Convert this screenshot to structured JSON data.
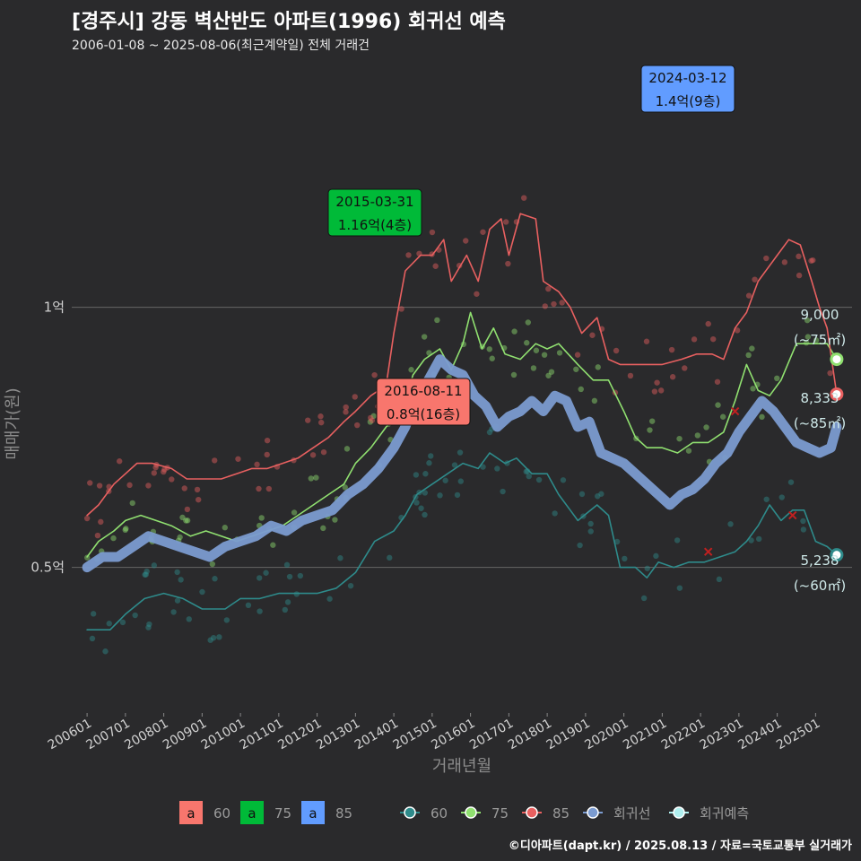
{
  "header": {
    "title": "[경주시] 강동 벽산반도 아파트(1996) 회귀선 예측",
    "subtitle": "2006-01-08 ~ 2025-08-06(최근계약일) 전체 거래건"
  },
  "footer": {
    "credit": "©디아파트(dapt.kr) / 2025.08.13 / 자료=국토교통부 실거래가"
  },
  "colors": {
    "background": "#2a2a2c",
    "s60": "#2e8b8b",
    "s75": "#90e070",
    "s85": "#e86060",
    "regression": "#7b9bd0",
    "forecast": "#b0f0f0",
    "box60": "#f8766d",
    "box75": "#00ba38",
    "box85": "#619cff"
  },
  "chart_data": {
    "type": "line",
    "xlabel": "거래년월",
    "ylabel": "매매가(원)",
    "x_ticks": [
      "200601",
      "200701",
      "200801",
      "200901",
      "201001",
      "201101",
      "201201",
      "201301",
      "201401",
      "201501",
      "201601",
      "201701",
      "201801",
      "201901",
      "202001",
      "202101",
      "202201",
      "202301",
      "202401",
      "202501"
    ],
    "y_ticks": [
      {
        "value": 0.5,
        "label": "0.5억"
      },
      {
        "value": 1.0,
        "label": "1억"
      }
    ],
    "ylim": [
      0.22,
      1.47
    ],
    "xlim": [
      2005.6,
      2025.95
    ],
    "series": [
      {
        "name": "60",
        "color": "#2e8b8b",
        "values": [
          [
            2006.0,
            0.38
          ],
          [
            2006.6,
            0.38
          ],
          [
            2007.0,
            0.41
          ],
          [
            2007.5,
            0.44
          ],
          [
            2008.0,
            0.45
          ],
          [
            2008.5,
            0.44
          ],
          [
            2009.0,
            0.42
          ],
          [
            2009.6,
            0.42
          ],
          [
            2010.0,
            0.44
          ],
          [
            2010.5,
            0.44
          ],
          [
            2011.0,
            0.45
          ],
          [
            2011.5,
            0.45
          ],
          [
            2012.0,
            0.45
          ],
          [
            2012.5,
            0.46
          ],
          [
            2013.0,
            0.49
          ],
          [
            2013.5,
            0.55
          ],
          [
            2014.0,
            0.57
          ],
          [
            2014.3,
            0.6
          ],
          [
            2014.6,
            0.64
          ],
          [
            2015.0,
            0.66
          ],
          [
            2015.4,
            0.68
          ],
          [
            2015.8,
            0.7
          ],
          [
            2016.2,
            0.69
          ],
          [
            2016.5,
            0.72
          ],
          [
            2016.9,
            0.7
          ],
          [
            2017.2,
            0.71
          ],
          [
            2017.6,
            0.68
          ],
          [
            2018.0,
            0.68
          ],
          [
            2018.3,
            0.64
          ],
          [
            2018.6,
            0.61
          ],
          [
            2018.8,
            0.59
          ],
          [
            2019.3,
            0.62
          ],
          [
            2019.6,
            0.6
          ],
          [
            2019.9,
            0.5
          ],
          [
            2020.3,
            0.5
          ],
          [
            2020.6,
            0.48
          ],
          [
            2020.9,
            0.51
          ],
          [
            2021.3,
            0.5
          ],
          [
            2021.7,
            0.51
          ],
          [
            2022.1,
            0.51
          ],
          [
            2022.5,
            0.52
          ],
          [
            2022.9,
            0.53
          ],
          [
            2023.2,
            0.55
          ],
          [
            2023.5,
            0.58
          ],
          [
            2023.8,
            0.62
          ],
          [
            2024.1,
            0.59
          ],
          [
            2024.4,
            0.61
          ],
          [
            2024.7,
            0.61
          ],
          [
            2025.0,
            0.55
          ],
          [
            2025.3,
            0.54
          ],
          [
            2025.55,
            0.524
          ]
        ]
      },
      {
        "name": "75",
        "color": "#90e070",
        "values": [
          [
            2006.0,
            0.52
          ],
          [
            2006.3,
            0.55
          ],
          [
            2006.7,
            0.57
          ],
          [
            2007.0,
            0.59
          ],
          [
            2007.4,
            0.6
          ],
          [
            2007.8,
            0.59
          ],
          [
            2008.2,
            0.58
          ],
          [
            2008.7,
            0.56
          ],
          [
            2009.1,
            0.57
          ],
          [
            2009.5,
            0.56
          ],
          [
            2009.9,
            0.55
          ],
          [
            2010.3,
            0.56
          ],
          [
            2010.7,
            0.57
          ],
          [
            2011.1,
            0.58
          ],
          [
            2011.5,
            0.6
          ],
          [
            2011.9,
            0.62
          ],
          [
            2012.3,
            0.64
          ],
          [
            2012.7,
            0.66
          ],
          [
            2013.0,
            0.7
          ],
          [
            2013.4,
            0.73
          ],
          [
            2013.8,
            0.77
          ],
          [
            2014.2,
            0.8
          ],
          [
            2014.5,
            0.87
          ],
          [
            2014.8,
            0.9
          ],
          [
            2015.2,
            0.92
          ],
          [
            2015.5,
            0.88
          ],
          [
            2015.8,
            0.93
          ],
          [
            2016.0,
            0.99
          ],
          [
            2016.3,
            0.92
          ],
          [
            2016.6,
            0.96
          ],
          [
            2016.9,
            0.91
          ],
          [
            2017.3,
            0.9
          ],
          [
            2017.7,
            0.93
          ],
          [
            2018.0,
            0.92
          ],
          [
            2018.3,
            0.93
          ],
          [
            2018.8,
            0.89
          ],
          [
            2019.2,
            0.86
          ],
          [
            2019.6,
            0.86
          ],
          [
            2020.0,
            0.8
          ],
          [
            2020.3,
            0.75
          ],
          [
            2020.6,
            0.73
          ],
          [
            2021.0,
            0.73
          ],
          [
            2021.4,
            0.72
          ],
          [
            2021.8,
            0.74
          ],
          [
            2022.2,
            0.74
          ],
          [
            2022.6,
            0.76
          ],
          [
            2022.9,
            0.82
          ],
          [
            2023.2,
            0.89
          ],
          [
            2023.5,
            0.84
          ],
          [
            2023.8,
            0.83
          ],
          [
            2024.1,
            0.86
          ],
          [
            2024.5,
            0.93
          ],
          [
            2024.9,
            0.93
          ],
          [
            2025.3,
            0.93
          ],
          [
            2025.55,
            0.9
          ]
        ]
      },
      {
        "name": "85",
        "color": "#e86060",
        "values": [
          [
            2006.0,
            0.6
          ],
          [
            2006.3,
            0.62
          ],
          [
            2006.7,
            0.66
          ],
          [
            2007.0,
            0.68
          ],
          [
            2007.3,
            0.7
          ],
          [
            2007.7,
            0.7
          ],
          [
            2008.2,
            0.69
          ],
          [
            2008.6,
            0.67
          ],
          [
            2009.0,
            0.67
          ],
          [
            2009.5,
            0.67
          ],
          [
            2009.9,
            0.68
          ],
          [
            2010.3,
            0.69
          ],
          [
            2010.7,
            0.69
          ],
          [
            2011.1,
            0.7
          ],
          [
            2011.5,
            0.71
          ],
          [
            2011.9,
            0.73
          ],
          [
            2012.3,
            0.75
          ],
          [
            2012.7,
            0.78
          ],
          [
            2013.0,
            0.8
          ],
          [
            2013.4,
            0.83
          ],
          [
            2013.8,
            0.85
          ],
          [
            2014.0,
            0.95
          ],
          [
            2014.3,
            1.07
          ],
          [
            2014.7,
            1.1
          ],
          [
            2015.0,
            1.1
          ],
          [
            2015.3,
            1.13
          ],
          [
            2015.5,
            1.05
          ],
          [
            2015.9,
            1.1
          ],
          [
            2016.2,
            1.05
          ],
          [
            2016.5,
            1.15
          ],
          [
            2016.8,
            1.17
          ],
          [
            2017.0,
            1.1
          ],
          [
            2017.3,
            1.18
          ],
          [
            2017.7,
            1.17
          ],
          [
            2017.9,
            1.05
          ],
          [
            2018.3,
            1.03
          ],
          [
            2018.6,
            1.0
          ],
          [
            2018.9,
            0.95
          ],
          [
            2019.3,
            0.98
          ],
          [
            2019.6,
            0.9
          ],
          [
            2019.9,
            0.89
          ],
          [
            2020.3,
            0.89
          ],
          [
            2020.6,
            0.89
          ],
          [
            2021.0,
            0.89
          ],
          [
            2021.5,
            0.9
          ],
          [
            2021.9,
            0.91
          ],
          [
            2022.3,
            0.91
          ],
          [
            2022.6,
            0.9
          ],
          [
            2022.9,
            0.96
          ],
          [
            2023.2,
            0.99
          ],
          [
            2023.5,
            1.05
          ],
          [
            2023.8,
            1.08
          ],
          [
            2024.0,
            1.1
          ],
          [
            2024.3,
            1.13
          ],
          [
            2024.6,
            1.12
          ],
          [
            2024.9,
            1.05
          ],
          [
            2025.1,
            1.0
          ],
          [
            2025.3,
            0.96
          ],
          [
            2025.55,
            0.833
          ]
        ]
      },
      {
        "name": "회귀선",
        "color": "#7b9bd0",
        "values": [
          [
            2006.0,
            0.5
          ],
          [
            2006.4,
            0.52
          ],
          [
            2006.8,
            0.52
          ],
          [
            2007.2,
            0.54
          ],
          [
            2007.6,
            0.56
          ],
          [
            2008.0,
            0.55
          ],
          [
            2008.4,
            0.54
          ],
          [
            2008.8,
            0.53
          ],
          [
            2009.2,
            0.52
          ],
          [
            2009.6,
            0.54
          ],
          [
            2010.0,
            0.55
          ],
          [
            2010.4,
            0.56
          ],
          [
            2010.8,
            0.58
          ],
          [
            2011.2,
            0.57
          ],
          [
            2011.6,
            0.59
          ],
          [
            2012.0,
            0.6
          ],
          [
            2012.4,
            0.61
          ],
          [
            2012.8,
            0.64
          ],
          [
            2013.2,
            0.66
          ],
          [
            2013.6,
            0.69
          ],
          [
            2014.0,
            0.73
          ],
          [
            2014.3,
            0.77
          ],
          [
            2014.6,
            0.83
          ],
          [
            2014.9,
            0.86
          ],
          [
            2015.2,
            0.9
          ],
          [
            2015.5,
            0.88
          ],
          [
            2015.8,
            0.87
          ],
          [
            2016.1,
            0.83
          ],
          [
            2016.4,
            0.81
          ],
          [
            2016.7,
            0.77
          ],
          [
            2017.0,
            0.79
          ],
          [
            2017.3,
            0.8
          ],
          [
            2017.6,
            0.82
          ],
          [
            2017.9,
            0.8
          ],
          [
            2018.2,
            0.83
          ],
          [
            2018.5,
            0.82
          ],
          [
            2018.8,
            0.77
          ],
          [
            2019.1,
            0.78
          ],
          [
            2019.4,
            0.72
          ],
          [
            2019.7,
            0.71
          ],
          [
            2020.0,
            0.7
          ],
          [
            2020.3,
            0.68
          ],
          [
            2020.6,
            0.66
          ],
          [
            2020.9,
            0.64
          ],
          [
            2021.2,
            0.62
          ],
          [
            2021.5,
            0.64
          ],
          [
            2021.8,
            0.65
          ],
          [
            2022.1,
            0.67
          ],
          [
            2022.4,
            0.7
          ],
          [
            2022.7,
            0.72
          ],
          [
            2023.0,
            0.76
          ],
          [
            2023.3,
            0.79
          ],
          [
            2023.6,
            0.82
          ],
          [
            2023.9,
            0.8
          ],
          [
            2024.2,
            0.77
          ],
          [
            2024.5,
            0.74
          ],
          [
            2024.8,
            0.73
          ],
          [
            2025.1,
            0.72
          ],
          [
            2025.4,
            0.73
          ],
          [
            2025.55,
            0.77
          ]
        ]
      }
    ],
    "end_markers": [
      {
        "series": "75",
        "x": 2025.55,
        "y": 0.9,
        "value": "9,000",
        "area": "(~75㎡)"
      },
      {
        "series": "85",
        "x": 2025.55,
        "y": 0.833,
        "value": "8,333",
        "area": "(~85㎡)"
      },
      {
        "series": "60",
        "x": 2025.55,
        "y": 0.524,
        "value": "5,238",
        "area": "(~60㎡)"
      }
    ],
    "annotations": [
      {
        "date": "2024-03-12",
        "price": "1.4억(9층)",
        "color": "#619cff",
        "x": 2024.2,
        "y": 1.4
      },
      {
        "date": "2015-03-31",
        "price": "1.16억(4층)",
        "color": "#00ba38",
        "x": 2015.25,
        "y": 1.16
      },
      {
        "date": "2016-08-11",
        "price": "0.8억(16층)",
        "color": "#f8766d",
        "x": 2016.6,
        "y": 0.8
      }
    ],
    "cross_markers": [
      {
        "series": "85",
        "x": 2022.9,
        "y": 0.8
      },
      {
        "series": "60",
        "x": 2022.2,
        "y": 0.53
      },
      {
        "series": "60",
        "x": 2024.4,
        "y": 0.6
      }
    ],
    "legend": {
      "boxes": [
        {
          "label": "60",
          "color": "#f8766d",
          "glyph": "a"
        },
        {
          "label": "75",
          "color": "#00ba38",
          "glyph": "a"
        },
        {
          "label": "85",
          "color": "#619cff",
          "glyph": "a"
        }
      ],
      "lines": [
        {
          "label": "60",
          "color": "#2e8b8b"
        },
        {
          "label": "75",
          "color": "#90e070"
        },
        {
          "label": "85",
          "color": "#e86060"
        },
        {
          "label": "회귀선",
          "color": "#7b9bd0"
        },
        {
          "label": "회귀예측",
          "color": "#b0f0f0"
        }
      ],
      "placement": "bottom"
    }
  }
}
